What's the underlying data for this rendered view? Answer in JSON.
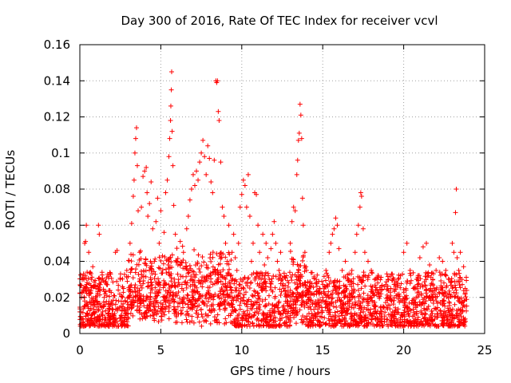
{
  "chart_data": {
    "type": "scatter",
    "title": "Day 300 of 2016, Rate Of TEC Index for receiver vcvl",
    "xlabel": "GPS time / hours",
    "ylabel": "ROTI / TECUs",
    "xlim": [
      0,
      25
    ],
    "ylim": [
      0,
      0.16
    ],
    "xticks": [
      0,
      5,
      10,
      15,
      20,
      25
    ],
    "xtick_labels": [
      "0",
      "5",
      "10",
      "15",
      "20",
      "25"
    ],
    "yticks": [
      0,
      0.02,
      0.04,
      0.06,
      0.08,
      0.1,
      0.12,
      0.14,
      0.16
    ],
    "ytick_labels": [
      "0",
      "0.02",
      "0.04",
      "0.06",
      "0.08",
      "0.1",
      "0.12",
      "0.14",
      "0.16"
    ],
    "grid": true,
    "marker": "+",
    "color": "#ff0000",
    "series": [
      {
        "name": "ROTI",
        "description_of_density": "dense band 0.005-0.03 TECU across 0-24 h",
        "points": [
          [
            0.0,
            0.012
          ],
          [
            0.1,
            0.02
          ],
          [
            0.2,
            0.008
          ],
          [
            0.25,
            0.03
          ],
          [
            0.3,
            0.05
          ],
          [
            0.35,
            0.051
          ],
          [
            0.4,
            0.06
          ],
          [
            0.45,
            0.034
          ],
          [
            0.5,
            0.015
          ],
          [
            0.55,
            0.045
          ],
          [
            0.6,
            0.022
          ],
          [
            0.7,
            0.01
          ],
          [
            0.8,
            0.037
          ],
          [
            0.9,
            0.016
          ],
          [
            1.0,
            0.025
          ],
          [
            1.1,
            0.009
          ],
          [
            1.15,
            0.06
          ],
          [
            1.2,
            0.055
          ],
          [
            1.3,
            0.03
          ],
          [
            1.4,
            0.012
          ],
          [
            1.5,
            0.02
          ],
          [
            1.6,
            0.008
          ],
          [
            1.7,
            0.027
          ],
          [
            1.8,
            0.014
          ],
          [
            1.9,
            0.033
          ],
          [
            2.0,
            0.011
          ],
          [
            2.1,
            0.021
          ],
          [
            2.2,
            0.045
          ],
          [
            2.3,
            0.046
          ],
          [
            2.4,
            0.018
          ],
          [
            2.5,
            0.03
          ],
          [
            2.6,
            0.013
          ],
          [
            2.7,
            0.025
          ],
          [
            2.8,
            0.01
          ],
          [
            2.9,
            0.035
          ],
          [
            3.0,
            0.016
          ],
          [
            3.1,
            0.05
          ],
          [
            3.2,
            0.061
          ],
          [
            3.3,
            0.076
          ],
          [
            3.35,
            0.085
          ],
          [
            3.4,
            0.1
          ],
          [
            3.45,
            0.108
          ],
          [
            3.5,
            0.114
          ],
          [
            3.55,
            0.093
          ],
          [
            3.6,
            0.068
          ],
          [
            3.7,
            0.045
          ],
          [
            3.8,
            0.07
          ],
          [
            3.9,
            0.087
          ],
          [
            4.0,
            0.09
          ],
          [
            4.1,
            0.092
          ],
          [
            4.15,
            0.078
          ],
          [
            4.2,
            0.065
          ],
          [
            4.3,
            0.072
          ],
          [
            4.4,
            0.084
          ],
          [
            4.5,
            0.058
          ],
          [
            4.6,
            0.04
          ],
          [
            4.7,
            0.062
          ],
          [
            4.8,
            0.075
          ],
          [
            4.9,
            0.05
          ],
          [
            5.0,
            0.068
          ],
          [
            5.1,
            0.043
          ],
          [
            5.2,
            0.056
          ],
          [
            5.3,
            0.078
          ],
          [
            5.4,
            0.085
          ],
          [
            5.5,
            0.098
          ],
          [
            5.55,
            0.108
          ],
          [
            5.6,
            0.118
          ],
          [
            5.62,
            0.126
          ],
          [
            5.65,
            0.135
          ],
          [
            5.67,
            0.145
          ],
          [
            5.7,
            0.112
          ],
          [
            5.75,
            0.093
          ],
          [
            5.8,
            0.071
          ],
          [
            5.9,
            0.055
          ],
          [
            6.0,
            0.04
          ],
          [
            6.1,
            0.03
          ],
          [
            6.2,
            0.051
          ],
          [
            6.3,
            0.025
          ],
          [
            6.4,
            0.045
          ],
          [
            6.5,
            0.036
          ],
          [
            6.6,
            0.058
          ],
          [
            6.7,
            0.065
          ],
          [
            6.8,
            0.074
          ],
          [
            6.9,
            0.08
          ],
          [
            7.0,
            0.088
          ],
          [
            7.1,
            0.082
          ],
          [
            7.2,
            0.09
          ],
          [
            7.3,
            0.085
          ],
          [
            7.4,
            0.095
          ],
          [
            7.5,
            0.1
          ],
          [
            7.6,
            0.107
          ],
          [
            7.7,
            0.098
          ],
          [
            7.8,
            0.088
          ],
          [
            7.9,
            0.104
          ],
          [
            8.0,
            0.097
          ],
          [
            8.1,
            0.084
          ],
          [
            8.2,
            0.078
          ],
          [
            8.3,
            0.096
          ],
          [
            8.4,
            0.14
          ],
          [
            8.45,
            0.139
          ],
          [
            8.5,
            0.14
          ],
          [
            8.55,
            0.123
          ],
          [
            8.6,
            0.118
          ],
          [
            8.7,
            0.095
          ],
          [
            8.8,
            0.07
          ],
          [
            8.9,
            0.065
          ],
          [
            9.0,
            0.05
          ],
          [
            9.1,
            0.04
          ],
          [
            9.2,
            0.06
          ],
          [
            9.3,
            0.032
          ],
          [
            9.4,
            0.045
          ],
          [
            9.5,
            0.055
          ],
          [
            9.6,
            0.042
          ],
          [
            9.7,
            0.035
          ],
          [
            9.8,
            0.05
          ],
          [
            9.9,
            0.07
          ],
          [
            10.0,
            0.077
          ],
          [
            10.1,
            0.085
          ],
          [
            10.2,
            0.082
          ],
          [
            10.3,
            0.07
          ],
          [
            10.4,
            0.088
          ],
          [
            10.5,
            0.065
          ],
          [
            10.6,
            0.04
          ],
          [
            10.7,
            0.05
          ],
          [
            10.8,
            0.078
          ],
          [
            10.9,
            0.077
          ],
          [
            11.0,
            0.06
          ],
          [
            11.1,
            0.045
          ],
          [
            11.2,
            0.03
          ],
          [
            11.3,
            0.055
          ],
          [
            11.4,
            0.038
          ],
          [
            11.5,
            0.05
          ],
          [
            11.6,
            0.042
          ],
          [
            11.7,
            0.03
          ],
          [
            11.8,
            0.047
          ],
          [
            11.9,
            0.055
          ],
          [
            12.0,
            0.062
          ],
          [
            12.1,
            0.05
          ],
          [
            12.2,
            0.04
          ],
          [
            12.3,
            0.035
          ],
          [
            12.4,
            0.045
          ],
          [
            12.5,
            0.03
          ],
          [
            12.6,
            0.025
          ],
          [
            12.7,
            0.022
          ],
          [
            12.8,
            0.018
          ],
          [
            12.9,
            0.028
          ],
          [
            13.0,
            0.05
          ],
          [
            13.1,
            0.062
          ],
          [
            13.2,
            0.07
          ],
          [
            13.3,
            0.068
          ],
          [
            13.4,
            0.088
          ],
          [
            13.45,
            0.096
          ],
          [
            13.5,
            0.107
          ],
          [
            13.55,
            0.111
          ],
          [
            13.6,
            0.127
          ],
          [
            13.65,
            0.121
          ],
          [
            13.7,
            0.108
          ],
          [
            13.75,
            0.075
          ],
          [
            13.8,
            0.06
          ],
          [
            13.9,
            0.045
          ],
          [
            14.0,
            0.035
          ],
          [
            14.2,
            0.028
          ],
          [
            14.4,
            0.022
          ],
          [
            14.6,
            0.03
          ],
          [
            14.8,
            0.025
          ],
          [
            15.0,
            0.02
          ],
          [
            15.2,
            0.035
          ],
          [
            15.4,
            0.045
          ],
          [
            15.5,
            0.05
          ],
          [
            15.6,
            0.055
          ],
          [
            15.7,
            0.058
          ],
          [
            15.8,
            0.064
          ],
          [
            15.9,
            0.06
          ],
          [
            16.0,
            0.047
          ],
          [
            16.2,
            0.035
          ],
          [
            16.4,
            0.04
          ],
          [
            16.6,
            0.03
          ],
          [
            16.8,
            0.035
          ],
          [
            17.0,
            0.045
          ],
          [
            17.1,
            0.055
          ],
          [
            17.2,
            0.06
          ],
          [
            17.3,
            0.07
          ],
          [
            17.35,
            0.078
          ],
          [
            17.4,
            0.076
          ],
          [
            17.5,
            0.058
          ],
          [
            17.6,
            0.045
          ],
          [
            17.8,
            0.04
          ],
          [
            18.0,
            0.035
          ],
          [
            18.2,
            0.03
          ],
          [
            18.4,
            0.028
          ],
          [
            18.6,
            0.022
          ],
          [
            18.8,
            0.026
          ],
          [
            19.0,
            0.02
          ],
          [
            19.2,
            0.025
          ],
          [
            19.4,
            0.03
          ],
          [
            19.6,
            0.028
          ],
          [
            19.8,
            0.032
          ],
          [
            20.0,
            0.045
          ],
          [
            20.2,
            0.05
          ],
          [
            20.4,
            0.035
          ],
          [
            20.6,
            0.025
          ],
          [
            20.8,
            0.03
          ],
          [
            21.0,
            0.042
          ],
          [
            21.2,
            0.048
          ],
          [
            21.4,
            0.05
          ],
          [
            21.6,
            0.038
          ],
          [
            21.8,
            0.03
          ],
          [
            22.0,
            0.035
          ],
          [
            22.2,
            0.042
          ],
          [
            22.4,
            0.04
          ],
          [
            22.6,
            0.035
          ],
          [
            22.8,
            0.03
          ],
          [
            23.0,
            0.05
          ],
          [
            23.1,
            0.045
          ],
          [
            23.2,
            0.067
          ],
          [
            23.25,
            0.08
          ],
          [
            23.3,
            0.042
          ],
          [
            23.4,
            0.035
          ],
          [
            23.5,
            0.045
          ],
          [
            23.6,
            0.03
          ],
          [
            23.7,
            0.037
          ],
          [
            23.8,
            0.025
          ]
        ]
      }
    ]
  }
}
